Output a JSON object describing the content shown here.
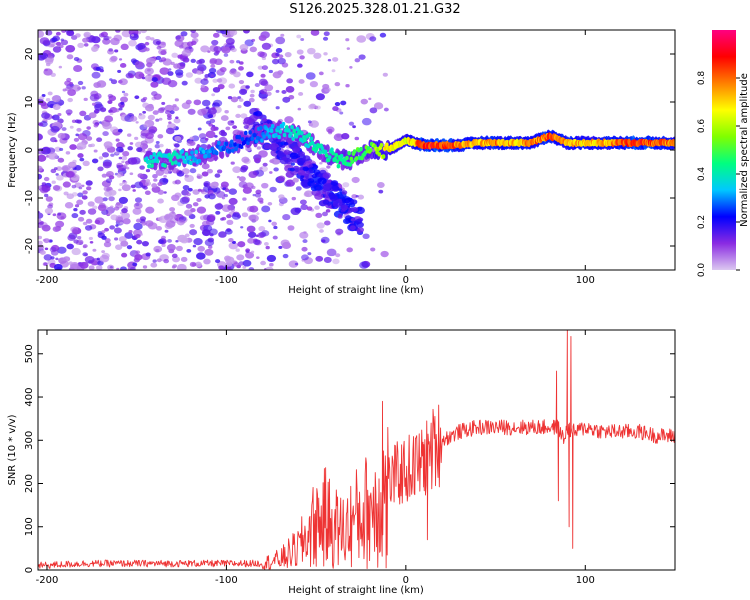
{
  "title": "S126.2025.328.01.21.G32",
  "chart_data": [
    {
      "type": "heatmap",
      "name": "spectrogram",
      "xlabel": "Height of straight line (km)",
      "ylabel": "Frequency (Hz)",
      "xlim": [
        -205,
        150
      ],
      "ylim": [
        -25,
        25
      ],
      "xticks": [
        -200,
        -100,
        0,
        100
      ],
      "yticks": [
        -20,
        -10,
        0,
        10,
        20
      ],
      "colorbar": {
        "label": "Normalized spectral amplitude",
        "range": [
          0,
          1
        ],
        "ticks": [
          0.0,
          0.2,
          0.4,
          0.6,
          0.8
        ],
        "tick_labels": [
          "0.0",
          "0.2",
          "0.4",
          "0.6",
          "0.8"
        ],
        "colors": [
          "#dcc8f0",
          "#8a2be2",
          "#0000ff",
          "#00c8ff",
          "#00ff80",
          "#80ff00",
          "#ffff00",
          "#ff8000",
          "#ff0000",
          "#ff0080"
        ]
      },
      "ridge": [
        {
          "x": -140,
          "y": -2,
          "a": 0.4
        },
        {
          "x": -130,
          "y": -2,
          "a": 0.4
        },
        {
          "x": -120,
          "y": -1.5,
          "a": 0.35
        },
        {
          "x": -105,
          "y": 0,
          "a": 0.3
        },
        {
          "x": -90,
          "y": 2,
          "a": 0.25
        },
        {
          "x": -75,
          "y": 4,
          "a": 0.35
        },
        {
          "x": -65,
          "y": 4,
          "a": 0.4
        },
        {
          "x": -55,
          "y": 2,
          "a": 0.4
        },
        {
          "x": -45,
          "y": -0.5,
          "a": 0.45
        },
        {
          "x": -38,
          "y": -2,
          "a": 0.45
        },
        {
          "x": -30,
          "y": -2,
          "a": 0.5
        },
        {
          "x": -20,
          "y": 0,
          "a": 0.55
        },
        {
          "x": -10,
          "y": 0,
          "a": 0.7
        },
        {
          "x": 0,
          "y": 2,
          "a": 0.65
        },
        {
          "x": 10,
          "y": 1,
          "a": 0.9
        },
        {
          "x": 20,
          "y": 1,
          "a": 0.9
        },
        {
          "x": 30,
          "y": 1,
          "a": 0.8
        },
        {
          "x": 40,
          "y": 1.5,
          "a": 0.75
        },
        {
          "x": 50,
          "y": 1.5,
          "a": 0.8
        },
        {
          "x": 60,
          "y": 1.5,
          "a": 0.75
        },
        {
          "x": 70,
          "y": 1.5,
          "a": 0.8
        },
        {
          "x": 80,
          "y": 3,
          "a": 0.85
        },
        {
          "x": 90,
          "y": 1.5,
          "a": 0.8
        },
        {
          "x": 100,
          "y": 1.5,
          "a": 0.75
        },
        {
          "x": 110,
          "y": 1.5,
          "a": 0.75
        },
        {
          "x": 120,
          "y": 1.5,
          "a": 0.85
        },
        {
          "x": 130,
          "y": 1.5,
          "a": 0.9
        },
        {
          "x": 140,
          "y": 1.5,
          "a": 0.85
        },
        {
          "x": 150,
          "y": 1.5,
          "a": 0.8
        }
      ]
    },
    {
      "type": "line",
      "name": "snr",
      "xlabel": "Height of straight line (km)",
      "ylabel": "SNR (10 * v/v)",
      "xlim": [
        -205,
        150
      ],
      "ylim": [
        0,
        555
      ],
      "xticks": [
        -200,
        -100,
        0,
        100
      ],
      "yticks": [
        0,
        100,
        200,
        300,
        400,
        500
      ],
      "color": "#ee3333",
      "series": [
        {
          "name": "SNR",
          "x": [
            -205,
            -180,
            -150,
            -120,
            -100,
            -80,
            -70,
            -60,
            -55,
            -50,
            -45,
            -40,
            -35,
            -30,
            -25,
            -20,
            -15,
            -12,
            -10,
            -5,
            0,
            5,
            10,
            15,
            20,
            30,
            40,
            50,
            60,
            70,
            80,
            85,
            88,
            90,
            92,
            95,
            100,
            110,
            120,
            130,
            140,
            150
          ],
          "y": [
            10,
            15,
            15,
            15,
            15,
            15,
            25,
            50,
            80,
            110,
            120,
            100,
            90,
            110,
            130,
            140,
            160,
            180,
            200,
            220,
            230,
            240,
            250,
            280,
            300,
            320,
            330,
            330,
            330,
            330,
            330,
            330,
            300,
            330,
            320,
            320,
            330,
            320,
            320,
            320,
            310,
            310
          ]
        }
      ],
      "spikes": [
        {
          "x": -30,
          "y": 110
        },
        {
          "x": -15,
          "y": 180
        },
        {
          "x": -13,
          "y": 390
        },
        {
          "x": -11,
          "y": 5
        },
        {
          "x": 10,
          "y": 290
        },
        {
          "x": 12,
          "y": 70
        },
        {
          "x": 84,
          "y": 460
        },
        {
          "x": 85,
          "y": 160
        },
        {
          "x": 90,
          "y": 560
        },
        {
          "x": 91,
          "y": 100
        },
        {
          "x": 92,
          "y": 540
        },
        {
          "x": 93,
          "y": 50
        }
      ]
    }
  ]
}
